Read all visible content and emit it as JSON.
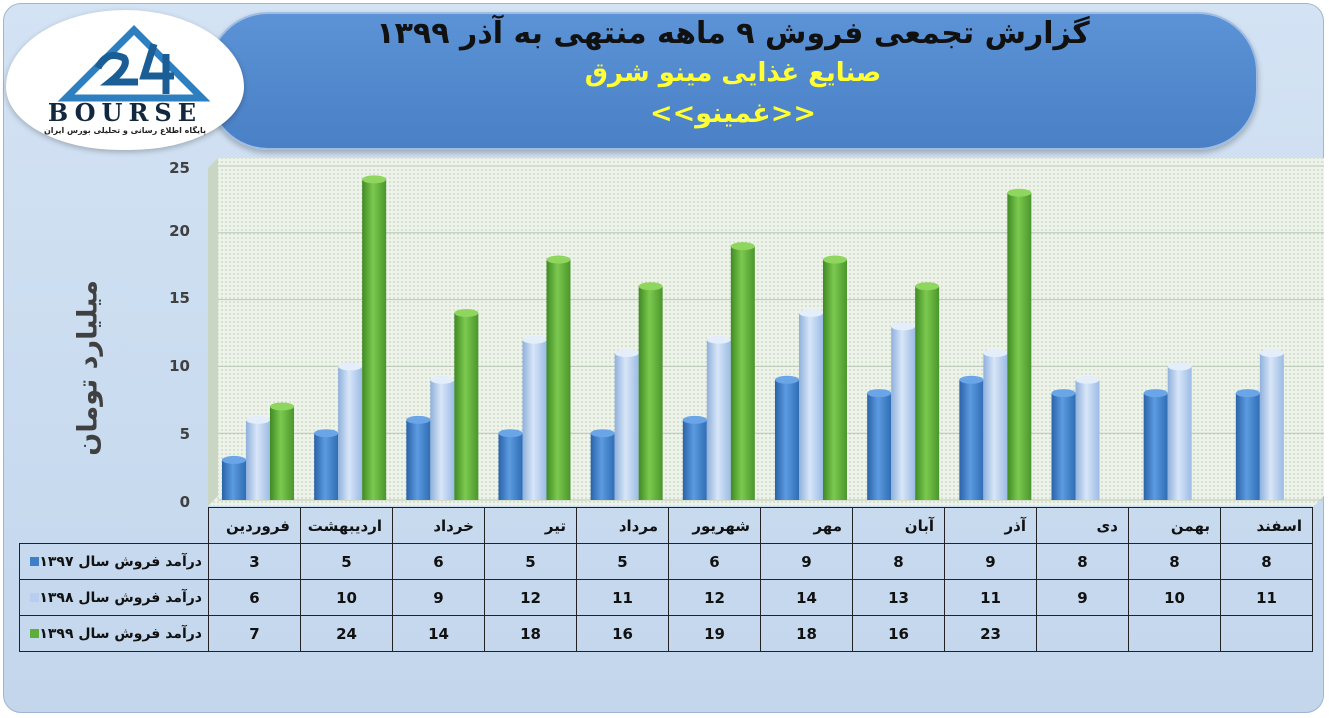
{
  "header": {
    "title": "گزارش تجمعی فروش ۹ ماهه منتهی به آذر ۱۳۹۹",
    "company": "صنایع غذایی مینو شرق",
    "symbol": "<<غمینو>>"
  },
  "logo": {
    "wordmark": "BOURSE",
    "tagline": "پایگاه اطلاع رسانی و تحلیلی بورس ایران"
  },
  "colors": {
    "series_1397": "#3f7fc9",
    "series_1398": "#b7cef0",
    "series_1399": "#5fae3a"
  },
  "chart_data": {
    "type": "bar",
    "ylabel": "میلیارد تومان",
    "ylim": [
      0,
      25
    ],
    "yticks": [
      0,
      5,
      10,
      15,
      20,
      25
    ],
    "grid": true,
    "categories": [
      "فروردین",
      "اردیبهشت",
      "خرداد",
      "تیر",
      "مرداد",
      "شهریور",
      "مهر",
      "آبان",
      "آذر",
      "دی",
      "بهمن",
      "اسفند"
    ],
    "series": [
      {
        "name": "درآمد فروش سال ۱۳۹۷",
        "values": [
          3,
          5,
          6,
          5,
          5,
          6,
          9,
          8,
          9,
          8,
          8,
          8
        ]
      },
      {
        "name": "درآمد فروش سال ۱۳۹۸",
        "values": [
          6,
          10,
          9,
          12,
          11,
          12,
          14,
          13,
          11,
          9,
          10,
          11
        ]
      },
      {
        "name": "درآمد فروش سال ۱۳۹۹",
        "values": [
          7,
          24,
          14,
          18,
          16,
          19,
          18,
          16,
          23,
          null,
          null,
          null
        ]
      }
    ]
  }
}
